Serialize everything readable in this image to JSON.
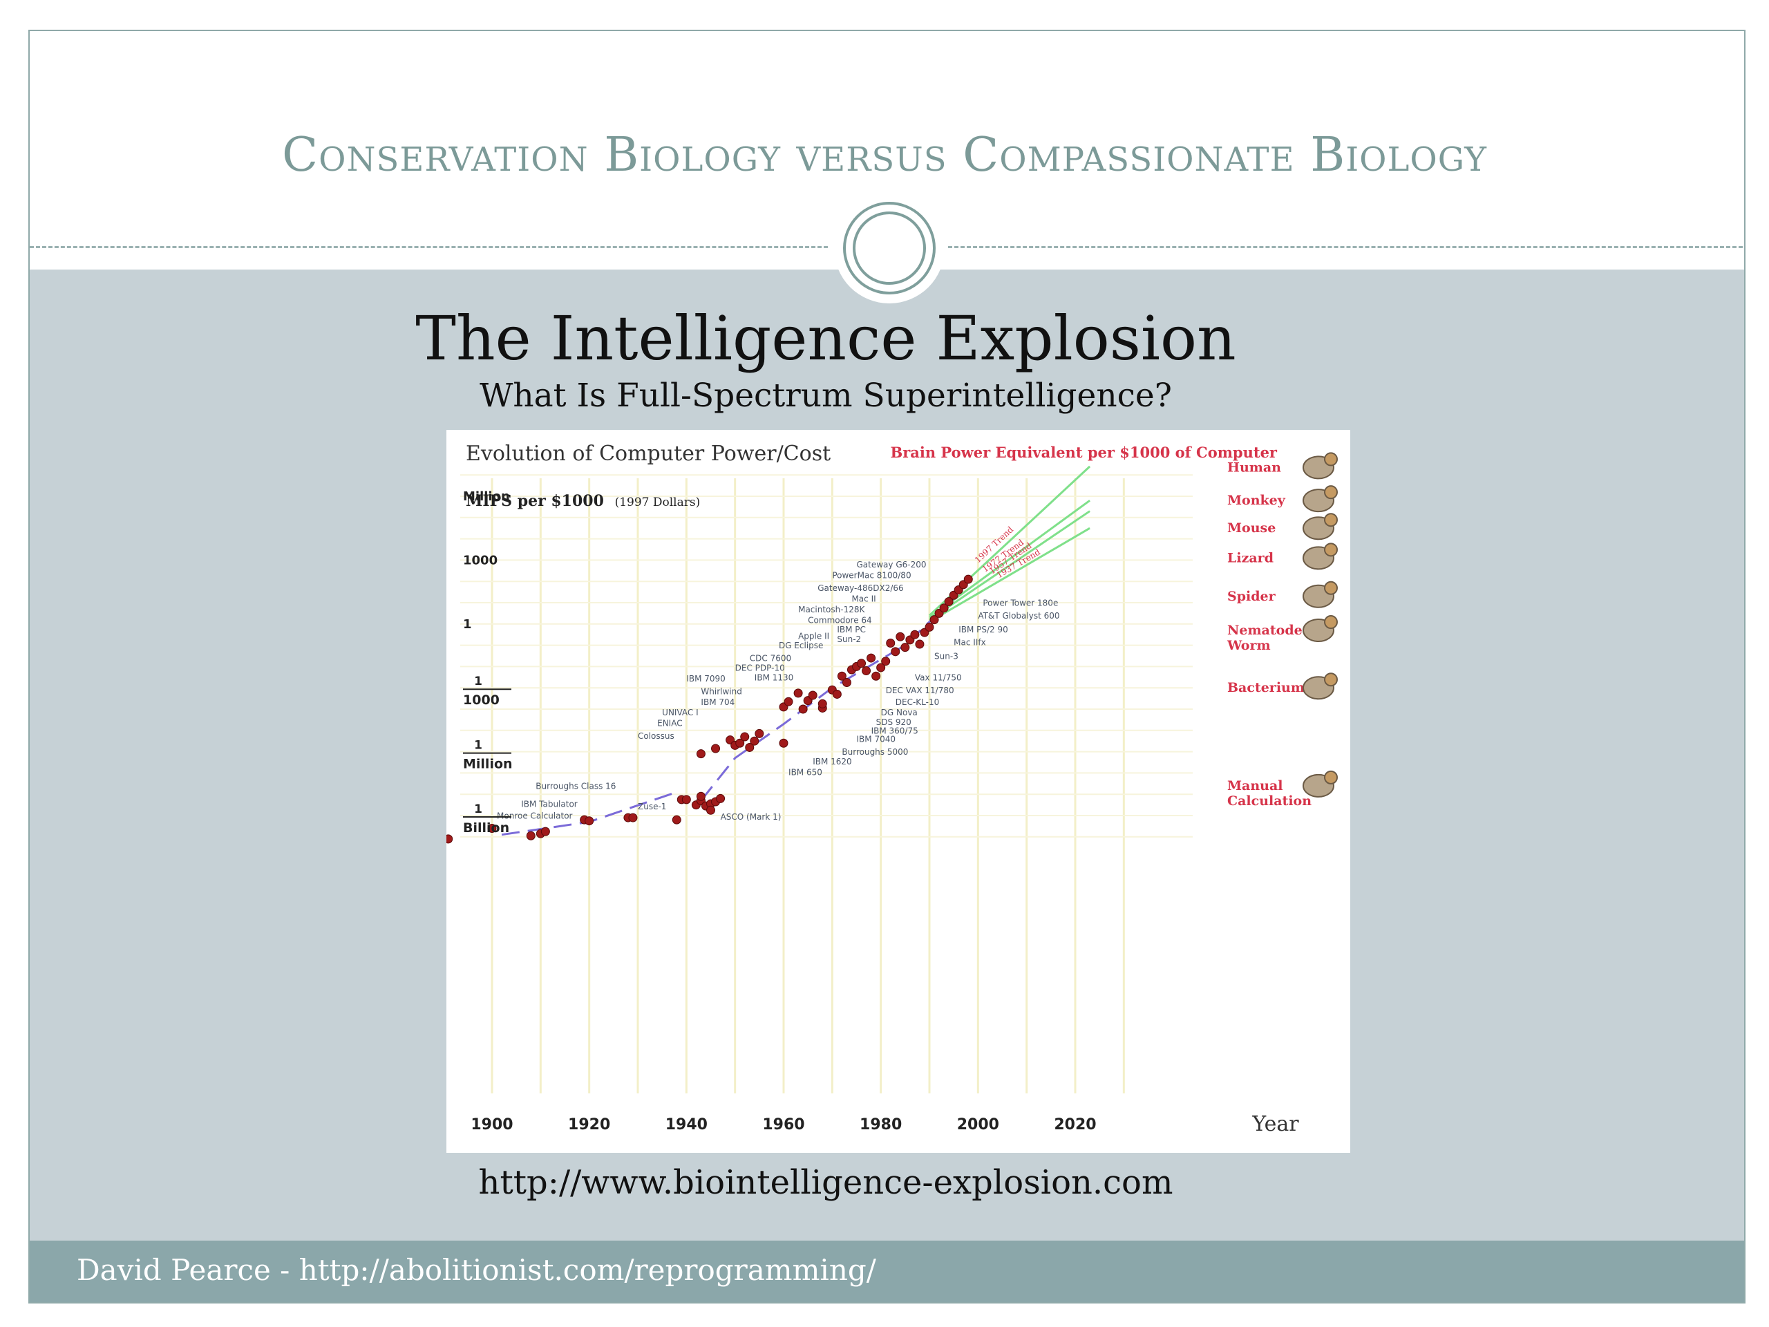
{
  "slide": {
    "title": "Conservation Biology versus Compassionate Biology",
    "heading": "The Intelligence Explosion",
    "subheading": "What Is Full-Spectrum Superintelligence?",
    "url": "http://www.biointelligence-explosion.com",
    "footer": "David Pearce - http://abolitionist.com/reprogramming/"
  },
  "chart_data": {
    "type": "scatter",
    "title": "Evolution of Computer Power/Cost",
    "ylabel": "MIPS per $1000",
    "ylabel_note": "(1997 Dollars)",
    "right_title": "Brain Power Equivalent per $1000 of Computer",
    "xlabel": "Year",
    "xlim": [
      1890,
      2030
    ],
    "x_ticks": [
      "1900",
      "1920",
      "1940",
      "1960",
      "1980",
      "2000",
      "2020"
    ],
    "y_scale": "log",
    "y_ticks": [
      {
        "value": 1000000.0,
        "num": "Million",
        "den": ""
      },
      {
        "value": 1000,
        "num": "1000",
        "den": ""
      },
      {
        "value": 1,
        "num": "1",
        "den": ""
      },
      {
        "value": 0.001,
        "num": "1",
        "den": "1000"
      },
      {
        "value": 1e-06,
        "num": "1",
        "den": "Million"
      },
      {
        "value": 1e-09,
        "num": "1",
        "den": "Billion"
      }
    ],
    "grid": true,
    "points": [
      [
        1891,
        -10.1
      ],
      [
        1900,
        -9.6
      ],
      [
        1908,
        -9.95
      ],
      [
        1910,
        -9.85
      ],
      [
        1911,
        -9.75
      ],
      [
        1919,
        -9.2
      ],
      [
        1920,
        -9.25
      ],
      [
        1928,
        -9.1
      ],
      [
        1929,
        -9.1
      ],
      [
        1938,
        -9.2
      ],
      [
        1939,
        -8.25
      ],
      [
        1940,
        -8.25
      ],
      [
        1942,
        -8.5
      ],
      [
        1943,
        -8.3
      ],
      [
        1943,
        -8.1
      ],
      [
        1944,
        -8.55
      ],
      [
        1945,
        -8.45
      ],
      [
        1945,
        -8.75
      ],
      [
        1946,
        -8.35
      ],
      [
        1947,
        -8.2
      ],
      [
        1943,
        -6.1
      ],
      [
        1946,
        -5.85
      ],
      [
        1949,
        -5.45
      ],
      [
        1950,
        -5.7
      ],
      [
        1951,
        -5.6
      ],
      [
        1952,
        -5.3
      ],
      [
        1953,
        -5.8
      ],
      [
        1954,
        -5.5
      ],
      [
        1955,
        -5.15
      ],
      [
        1960,
        -5.6
      ],
      [
        1960,
        -3.9
      ],
      [
        1961,
        -3.65
      ],
      [
        1963,
        -3.25
      ],
      [
        1964,
        -4.0
      ],
      [
        1965,
        -3.6
      ],
      [
        1966,
        -3.35
      ],
      [
        1968,
        -3.95
      ],
      [
        1968,
        -3.75
      ],
      [
        1970,
        -3.1
      ],
      [
        1971,
        -3.3
      ],
      [
        1972,
        -2.45
      ],
      [
        1973,
        -2.75
      ],
      [
        1974,
        -2.15
      ],
      [
        1975,
        -2.0
      ],
      [
        1976,
        -1.85
      ],
      [
        1977,
        -2.2
      ],
      [
        1978,
        -1.6
      ],
      [
        1979,
        -2.45
      ],
      [
        1980,
        -2.05
      ],
      [
        1981,
        -1.75
      ],
      [
        1982,
        -0.9
      ],
      [
        1983,
        -1.3
      ],
      [
        1984,
        -0.6
      ],
      [
        1985,
        -1.1
      ],
      [
        1986,
        -0.75
      ],
      [
        1987,
        -0.5
      ],
      [
        1988,
        -0.95
      ],
      [
        1989,
        -0.4
      ],
      [
        1990,
        -0.15
      ],
      [
        1991,
        0.2
      ],
      [
        1992,
        0.5
      ],
      [
        1993,
        0.75
      ],
      [
        1994,
        1.05
      ],
      [
        1995,
        1.35
      ],
      [
        1996,
        1.6
      ],
      [
        1997,
        1.85
      ],
      [
        1998,
        2.1
      ]
    ],
    "trend_lines": [
      {
        "name": "1997 Trend",
        "from": [
          1990,
          0.4
        ],
        "to": [
          2023,
          7.4
        ]
      },
      {
        "name": "1977 Trend",
        "from": [
          1990,
          0.3
        ],
        "to": [
          2023,
          5.8
        ]
      },
      {
        "name": "1957 Trend",
        "from": [
          1990,
          0.2
        ],
        "to": [
          2023,
          5.3
        ]
      },
      {
        "name": "1937 Trend",
        "from": [
          1990,
          0.1
        ],
        "to": [
          2023,
          4.5
        ]
      }
    ],
    "trend_curves": [
      {
        "points": [
          [
            1902,
            -9.9
          ],
          [
            1920,
            -9.3
          ],
          [
            1938,
            -7.9
          ]
        ]
      },
      {
        "points": [
          [
            1943,
            -8.3
          ],
          [
            1950,
            -6.3
          ],
          [
            1960,
            -4.7
          ],
          [
            1970,
            -3.0
          ],
          [
            1985,
            -1.0
          ],
          [
            1995,
            1.2
          ]
        ]
      }
    ],
    "machine_labels": [
      {
        "text": "Burroughs Class 16",
        "x": 1909,
        "y": -7.75
      },
      {
        "text": "IBM Tabulator",
        "x": 1906,
        "y": -8.6
      },
      {
        "text": "Monroe Calculator",
        "x": 1901,
        "y": -9.15
      },
      {
        "text": "Zuse-1",
        "x": 1930,
        "y": -8.7
      },
      {
        "text": "ASCO (Mark 1)",
        "x": 1947,
        "y": -9.2
      },
      {
        "text": "Colossus",
        "x": 1930,
        "y": -5.4
      },
      {
        "text": "ENIAC",
        "x": 1934,
        "y": -4.8
      },
      {
        "text": "UNIVAC I",
        "x": 1935,
        "y": -4.3
      },
      {
        "text": "IBM 704",
        "x": 1943,
        "y": -3.8
      },
      {
        "text": "Whirlwind",
        "x": 1943,
        "y": -3.3
      },
      {
        "text": "IBM 7090",
        "x": 1940,
        "y": -2.7
      },
      {
        "text": "DEC PDP-10",
        "x": 1950,
        "y": -2.2
      },
      {
        "text": "CDC 7600",
        "x": 1953,
        "y": -1.75
      },
      {
        "text": "IBM 1130",
        "x": 1954,
        "y": -2.65
      },
      {
        "text": "DG Eclipse",
        "x": 1959,
        "y": -1.15
      },
      {
        "text": "Apple II",
        "x": 1963,
        "y": -0.7
      },
      {
        "text": "Sun-2",
        "x": 1971,
        "y": -0.85
      },
      {
        "text": "IBM PC",
        "x": 1971,
        "y": -0.4
      },
      {
        "text": "Commodore 64",
        "x": 1965,
        "y": 0.05
      },
      {
        "text": "Macintosh-128K",
        "x": 1963,
        "y": 0.55
      },
      {
        "text": "Mac II",
        "x": 1974,
        "y": 1.05
      },
      {
        "text": "Gateway-486DX2/66",
        "x": 1967,
        "y": 1.55
      },
      {
        "text": "PowerMac 8100/80",
        "x": 1970,
        "y": 2.15
      },
      {
        "text": "Gateway G6-200",
        "x": 1975,
        "y": 2.65
      },
      {
        "text": "Power Tower 180e",
        "x": 2001,
        "y": 0.85
      },
      {
        "text": "AT&T Globalyst 600",
        "x": 2000,
        "y": 0.25
      },
      {
        "text": "IBM PS/2 90",
        "x": 1996,
        "y": -0.4
      },
      {
        "text": "Mac IIfx",
        "x": 1995,
        "y": -1.0
      },
      {
        "text": "Sun-3",
        "x": 1991,
        "y": -1.65
      },
      {
        "text": "Vax 11/750",
        "x": 1987,
        "y": -2.65
      },
      {
        "text": "DEC VAX 11/780",
        "x": 1981,
        "y": -3.25
      },
      {
        "text": "DEC-KL-10",
        "x": 1983,
        "y": -3.8
      },
      {
        "text": "DG Nova",
        "x": 1980,
        "y": -4.3
      },
      {
        "text": "SDS 920",
        "x": 1979,
        "y": -4.75
      },
      {
        "text": "IBM 360/75",
        "x": 1978,
        "y": -5.15
      },
      {
        "text": "IBM 7040",
        "x": 1975,
        "y": -5.55
      },
      {
        "text": "Burroughs 5000",
        "x": 1972,
        "y": -6.15
      },
      {
        "text": "IBM 1620",
        "x": 1966,
        "y": -6.6
      },
      {
        "text": "IBM 650",
        "x": 1961,
        "y": -7.1
      }
    ],
    "brain_levels": [
      {
        "label": "Human",
        "y": 7.35
      },
      {
        "label": "Monkey",
        "y": 5.8
      },
      {
        "label": "Mouse",
        "y": 4.5
      },
      {
        "label": "Lizard",
        "y": 3.1
      },
      {
        "label": "Spider",
        "y": 1.3
      },
      {
        "label": "Nematode Worm",
        "y": -0.3
      },
      {
        "label": "Bacterium",
        "y": -3.0
      },
      {
        "label": "Manual Calculation",
        "y": -7.6
      }
    ],
    "animal_icons": [
      "human-icon",
      "monkey-icon",
      "mouse-icon",
      "lizard-icon",
      "spider-icon",
      "worm-icon",
      "bacterium-icon",
      "hand-writing-icon"
    ],
    "colors": {
      "points": "#a01a1a",
      "trend": "#7fe08a",
      "curve": "#7b6bd8",
      "brain_text": "#d6344a",
      "grid": "#f3efc8"
    }
  },
  "colors": {
    "title": "#7c9a98",
    "panel": "#c6d1d6",
    "footer": "#8ba7aa"
  }
}
